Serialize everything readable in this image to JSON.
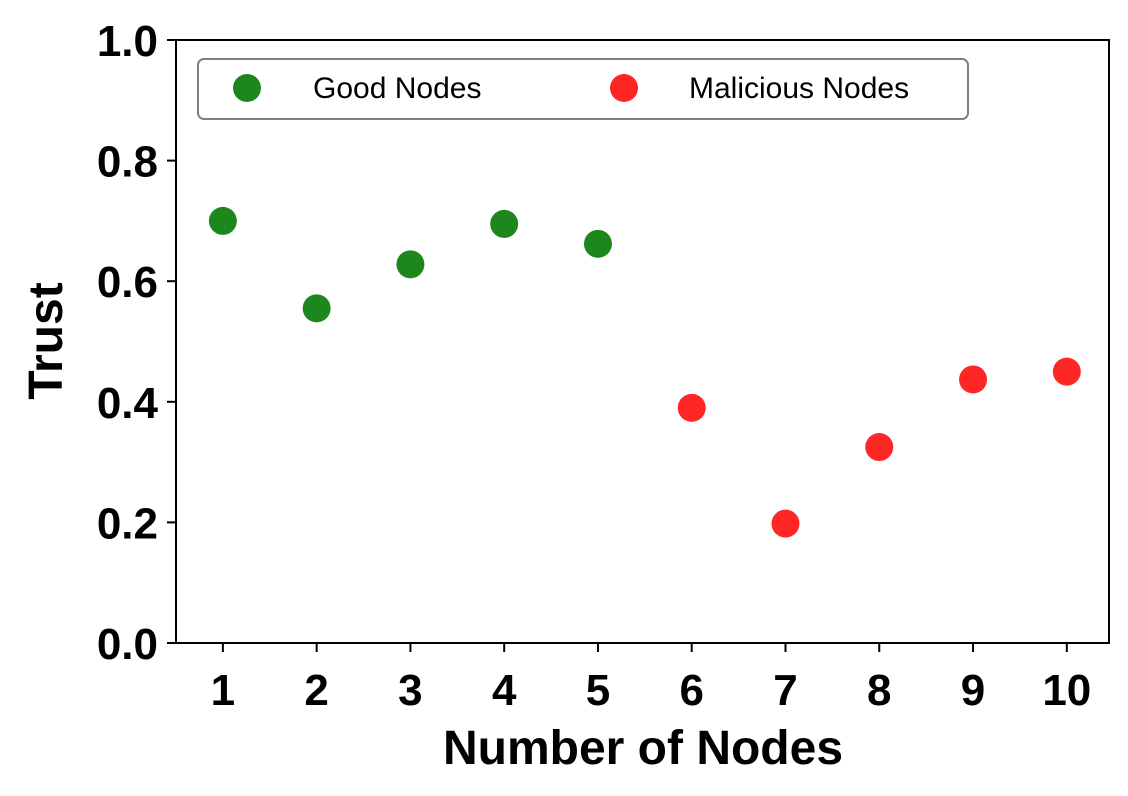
{
  "chart_data": {
    "type": "scatter",
    "xlabel": "Number of Nodes",
    "ylabel": "Trust",
    "xlim": [
      0.5,
      10.45
    ],
    "ylim": [
      0,
      1.0
    ],
    "xticks": [
      "1",
      "2",
      "3",
      "4",
      "5",
      "6",
      "7",
      "8",
      "9",
      "10"
    ],
    "yticks": [
      "0.0",
      "0.2",
      "0.4",
      "0.6",
      "0.8",
      "1.0"
    ],
    "grid": false,
    "legend_position": "top",
    "series": [
      {
        "name": "Good Nodes",
        "color": "#0a7d0a",
        "points": [
          {
            "x": 1,
            "y": 0.7
          },
          {
            "x": 2,
            "y": 0.555
          },
          {
            "x": 3,
            "y": 0.628
          },
          {
            "x": 4,
            "y": 0.695
          },
          {
            "x": 5,
            "y": 0.662
          }
        ]
      },
      {
        "name": "Malicious Nodes",
        "color": "#ff1414",
        "points": [
          {
            "x": 6,
            "y": 0.39
          },
          {
            "x": 7,
            "y": 0.198
          },
          {
            "x": 8,
            "y": 0.325
          },
          {
            "x": 9,
            "y": 0.437
          },
          {
            "x": 10,
            "y": 0.45
          }
        ]
      }
    ]
  }
}
